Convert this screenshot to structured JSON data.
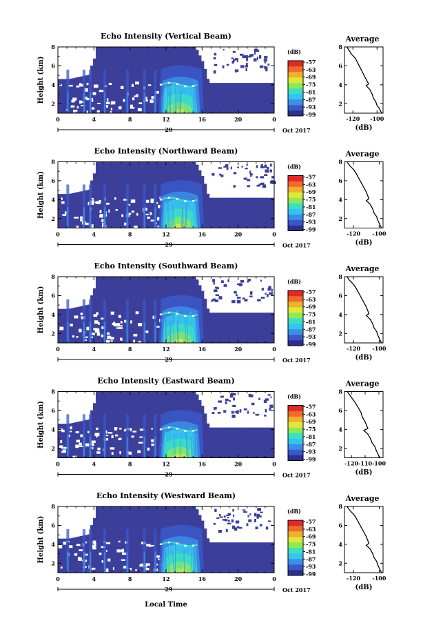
{
  "chart_data": [
    {
      "type": "heatmap",
      "title": "Echo Intensity (Vertical Beam)",
      "ylabel": "Height (km)",
      "y_ticks": [
        "2",
        "4",
        "6",
        "8"
      ],
      "x_ticks": [
        "0",
        "4",
        "8",
        "12",
        "16",
        "20",
        "0"
      ],
      "date_label": "29",
      "month_label": "Oct 2017",
      "x_range_hours": [
        0,
        24
      ],
      "y_range_km": [
        1,
        8
      ],
      "colorbar_unit": "(dB)",
      "colorbar_ticks": [
        "-57",
        "-63",
        "-69",
        "-75",
        "-81",
        "-87",
        "-93",
        "-99"
      ],
      "profile": {
        "title": "Average",
        "xlabel": "(dB)",
        "x_ticks": [
          "-120",
          "-100"
        ],
        "y_ticks": [
          "2",
          "4",
          "6",
          "8"
        ],
        "xlim": [
          -127,
          -95
        ],
        "ylim": [
          1,
          8
        ],
        "x": [
          -125,
          -123,
          -121,
          -118,
          -116,
          -114,
          -112,
          -110,
          -107,
          -109,
          -106,
          -104,
          -103,
          -101,
          -100,
          -98,
          -97,
          -96
        ],
        "y": [
          8.0,
          7.6,
          7.2,
          6.8,
          6.3,
          5.8,
          5.3,
          4.8,
          4.1,
          3.9,
          3.5,
          3.0,
          2.6,
          2.2,
          1.8,
          1.5,
          1.2,
          1.0
        ]
      }
    },
    {
      "type": "heatmap",
      "title": "Echo Intensity (Northward Beam)",
      "ylabel": "Height (km)",
      "y_ticks": [
        "2",
        "4",
        "6",
        "8"
      ],
      "x_ticks": [
        "0",
        "4",
        "8",
        "12",
        "16",
        "20",
        "0"
      ],
      "date_label": "29",
      "month_label": "Oct 2017",
      "x_range_hours": [
        0,
        24
      ],
      "y_range_km": [
        1,
        8
      ],
      "colorbar_unit": "(dB)",
      "colorbar_ticks": [
        "-57",
        "-63",
        "-69",
        "-75",
        "-81",
        "-87",
        "-93",
        "-99"
      ],
      "profile": {
        "title": "Average",
        "xlabel": "(dB)",
        "x_ticks": [
          "-120",
          "-100"
        ],
        "y_ticks": [
          "2",
          "4",
          "6",
          "8"
        ],
        "xlim": [
          -127,
          -97
        ],
        "ylim": [
          1,
          8
        ],
        "x": [
          -125,
          -123,
          -120,
          -118,
          -116,
          -114,
          -112,
          -110,
          -108,
          -110,
          -107,
          -105,
          -104,
          -102,
          -101,
          -100,
          -99,
          -98
        ],
        "y": [
          8.0,
          7.6,
          7.2,
          6.8,
          6.3,
          5.8,
          5.3,
          4.8,
          4.1,
          3.9,
          3.5,
          3.0,
          2.6,
          2.2,
          1.8,
          1.5,
          1.2,
          1.0
        ]
      }
    },
    {
      "type": "heatmap",
      "title": "Echo Intensity (Southward Beam)",
      "ylabel": "Height (km)",
      "y_ticks": [
        "2",
        "4",
        "6",
        "8"
      ],
      "x_ticks": [
        "0",
        "4",
        "8",
        "12",
        "16",
        "20",
        "0"
      ],
      "date_label": "29",
      "month_label": "Oct 2017",
      "x_range_hours": [
        0,
        24
      ],
      "y_range_km": [
        1,
        8
      ],
      "colorbar_unit": "(dB)",
      "colorbar_ticks": [
        "-57",
        "-63",
        "-69",
        "-75",
        "-81",
        "-87",
        "-93",
        "-99"
      ],
      "profile": {
        "title": "Average",
        "xlabel": "(dB)",
        "x_ticks": [
          "-120",
          "-100"
        ],
        "y_ticks": [
          "2",
          "4",
          "6",
          "8"
        ],
        "xlim": [
          -127,
          -97
        ],
        "ylim": [
          1,
          8
        ],
        "x": [
          -125,
          -123,
          -120,
          -118,
          -116,
          -114,
          -112,
          -110,
          -108,
          -110,
          -107,
          -105,
          -104,
          -102,
          -101,
          -100,
          -99,
          -98
        ],
        "y": [
          8.0,
          7.6,
          7.2,
          6.8,
          6.3,
          5.8,
          5.3,
          4.8,
          4.1,
          3.9,
          3.5,
          3.0,
          2.6,
          2.2,
          1.8,
          1.5,
          1.2,
          1.0
        ]
      }
    },
    {
      "type": "heatmap",
      "title": "Echo Intensity (Eastward Beam)",
      "ylabel": "Height (km)",
      "y_ticks": [
        "2",
        "4",
        "6",
        "8"
      ],
      "x_ticks": [
        "0",
        "4",
        "8",
        "12",
        "16",
        "20",
        "0"
      ],
      "date_label": "29",
      "month_label": "Oct 2017",
      "x_range_hours": [
        0,
        24
      ],
      "y_range_km": [
        1,
        8
      ],
      "colorbar_unit": "(dB)",
      "colorbar_ticks": [
        "-57",
        "-63",
        "-69",
        "-75",
        "-81",
        "-87",
        "-93",
        "-99"
      ],
      "profile": {
        "title": "Average",
        "xlabel": "(dB)",
        "x_ticks": [
          "-120",
          "-110",
          "-100"
        ],
        "y_ticks": [
          "2",
          "4",
          "6",
          "8"
        ],
        "xlim": [
          -125,
          -97
        ],
        "ylim": [
          1,
          8
        ],
        "x": [
          -123,
          -121,
          -119,
          -117,
          -115,
          -113,
          -112,
          -110,
          -108,
          -111,
          -108,
          -106,
          -105,
          -103,
          -102,
          -101,
          -100,
          -99
        ],
        "y": [
          8.0,
          7.6,
          7.2,
          6.8,
          6.3,
          5.8,
          5.3,
          4.8,
          4.1,
          3.9,
          3.5,
          3.0,
          2.6,
          2.2,
          1.8,
          1.5,
          1.2,
          1.0
        ]
      }
    },
    {
      "type": "heatmap",
      "title": "Echo Intensity (Westward Beam)",
      "ylabel": "Height (km)",
      "y_ticks": [
        "2",
        "4",
        "6",
        "8"
      ],
      "x_ticks": [
        "0",
        "4",
        "8",
        "12",
        "16",
        "20",
        "0"
      ],
      "date_label": "29",
      "month_label": "Oct 2017",
      "x_range_hours": [
        0,
        24
      ],
      "y_range_km": [
        1,
        8
      ],
      "colorbar_unit": "(dB)",
      "colorbar_ticks": [
        "-57",
        "-63",
        "-69",
        "-75",
        "-81",
        "-87",
        "-93",
        "-99"
      ],
      "profile": {
        "title": "Average",
        "xlabel": "(dB)",
        "x_ticks": [
          "-120",
          "-100"
        ],
        "y_ticks": [
          "2",
          "4",
          "6",
          "8"
        ],
        "xlim": [
          -127,
          -97
        ],
        "ylim": [
          1,
          8
        ],
        "x": [
          -125,
          -123,
          -120,
          -118,
          -116,
          -114,
          -112,
          -110,
          -108,
          -110,
          -107,
          -105,
          -104,
          -102,
          -101,
          -100,
          -99,
          -98
        ],
        "y": [
          8.0,
          7.6,
          7.2,
          6.8,
          6.3,
          5.8,
          5.3,
          4.8,
          4.1,
          3.9,
          3.5,
          3.0,
          2.6,
          2.2,
          1.8,
          1.5,
          1.2,
          1.0
        ]
      }
    }
  ],
  "footer": {
    "xlabel": "Local Time"
  },
  "colors": {
    "no_data": "#ffffff",
    "background_echo": "#3c3f9a",
    "colormap": [
      "#2c2f8c",
      "#3a58c8",
      "#3c8ee8",
      "#35c4f0",
      "#3ce0c0",
      "#8ee85a",
      "#e0e838",
      "#f0b030",
      "#f06a2a",
      "#e02a28"
    ]
  }
}
